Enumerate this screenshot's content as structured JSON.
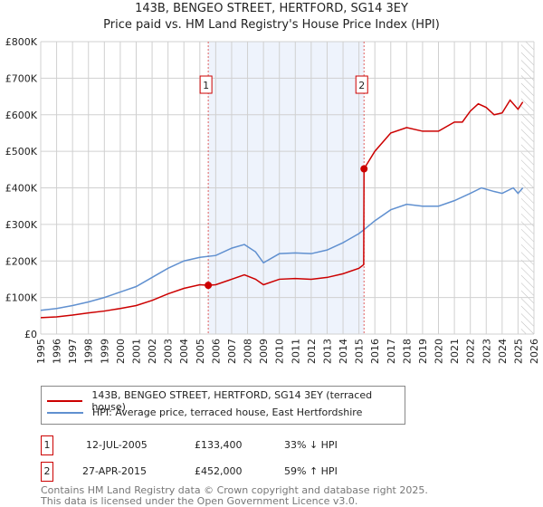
{
  "title": "143B, BENGEO STREET, HERTFORD, SG14 3EY",
  "subtitle": "Price paid vs. HM Land Registry's House Price Index (HPI)",
  "chart_data": {
    "type": "line",
    "xlim": [
      1995,
      2026
    ],
    "ylim": [
      0,
      800000
    ],
    "yticks": [
      {
        "v": 0,
        "label": "£0"
      },
      {
        "v": 100000,
        "label": "£100K"
      },
      {
        "v": 200000,
        "label": "£200K"
      },
      {
        "v": 300000,
        "label": "£300K"
      },
      {
        "v": 400000,
        "label": "£400K"
      },
      {
        "v": 500000,
        "label": "£500K"
      },
      {
        "v": 600000,
        "label": "£600K"
      },
      {
        "v": 700000,
        "label": "£700K"
      },
      {
        "v": 800000,
        "label": "£800K"
      }
    ],
    "xticks": [
      "1995",
      "1996",
      "1997",
      "1998",
      "1999",
      "2000",
      "2001",
      "2002",
      "2003",
      "2004",
      "2005",
      "2006",
      "2007",
      "2008",
      "2009",
      "2010",
      "2011",
      "2012",
      "2013",
      "2014",
      "2015",
      "2016",
      "2017",
      "2018",
      "2019",
      "2020",
      "2021",
      "2022",
      "2023",
      "2024",
      "2025",
      "2026"
    ],
    "series": [
      {
        "name": "143B, BENGEO STREET, HERTFORD, SG14 3EY (terraced house)",
        "color": "#cc0000",
        "x": [
          1995,
          1996,
          1997,
          1998,
          1999,
          2000,
          2001,
          2002,
          2003,
          2004,
          2005,
          2005.53,
          2006,
          2007,
          2007.8,
          2008.5,
          2009,
          2010,
          2011,
          2012,
          2013,
          2014,
          2015,
          2015.3,
          2015.32,
          2016,
          2017,
          2018,
          2019,
          2020,
          2021,
          2021.5,
          2022,
          2022.5,
          2023,
          2023.5,
          2024,
          2024.5,
          2025,
          2025.3
        ],
        "y": [
          45000,
          47000,
          52000,
          58000,
          63000,
          70000,
          78000,
          92000,
          110000,
          125000,
          135000,
          133400,
          135000,
          150000,
          162000,
          150000,
          135000,
          150000,
          152000,
          150000,
          155000,
          165000,
          180000,
          190000,
          452000,
          500000,
          550000,
          565000,
          555000,
          555000,
          580000,
          580000,
          610000,
          630000,
          620000,
          600000,
          605000,
          640000,
          615000,
          635000
        ]
      },
      {
        "name": "HPI: Average price, terraced house, East Hertfordshire",
        "color": "#6090d0",
        "x": [
          1995,
          1996,
          1997,
          1998,
          1999,
          2000,
          2001,
          2002,
          2003,
          2004,
          2005,
          2006,
          2007,
          2007.8,
          2008.5,
          2009,
          2010,
          2011,
          2012,
          2013,
          2014,
          2015,
          2015.3,
          2016,
          2017,
          2018,
          2019,
          2020,
          2021,
          2022,
          2022.7,
          2023.5,
          2024,
          2024.7,
          2025,
          2025.3
        ],
        "y": [
          65000,
          70000,
          78000,
          88000,
          100000,
          115000,
          130000,
          155000,
          180000,
          200000,
          210000,
          215000,
          235000,
          245000,
          225000,
          195000,
          220000,
          222000,
          220000,
          230000,
          250000,
          275000,
          285000,
          310000,
          340000,
          355000,
          350000,
          350000,
          365000,
          385000,
          400000,
          390000,
          385000,
          400000,
          385000,
          400000
        ]
      }
    ],
    "sales": [
      {
        "id": "1",
        "x": 2005.53,
        "y": 133400,
        "date": "12-JUL-2005",
        "price": "£133,400",
        "delta": "33% ↓ HPI"
      },
      {
        "id": "2",
        "x": 2015.32,
        "y": 452000,
        "date": "27-APR-2015",
        "price": "£452,000",
        "delta": "59% ↑ HPI"
      }
    ],
    "forecast_start": 2025.2
  },
  "footer": {
    "line1": "Contains HM Land Registry data © Crown copyright and database right 2025.",
    "line2": "This data is licensed under the Open Government Licence v3.0."
  }
}
